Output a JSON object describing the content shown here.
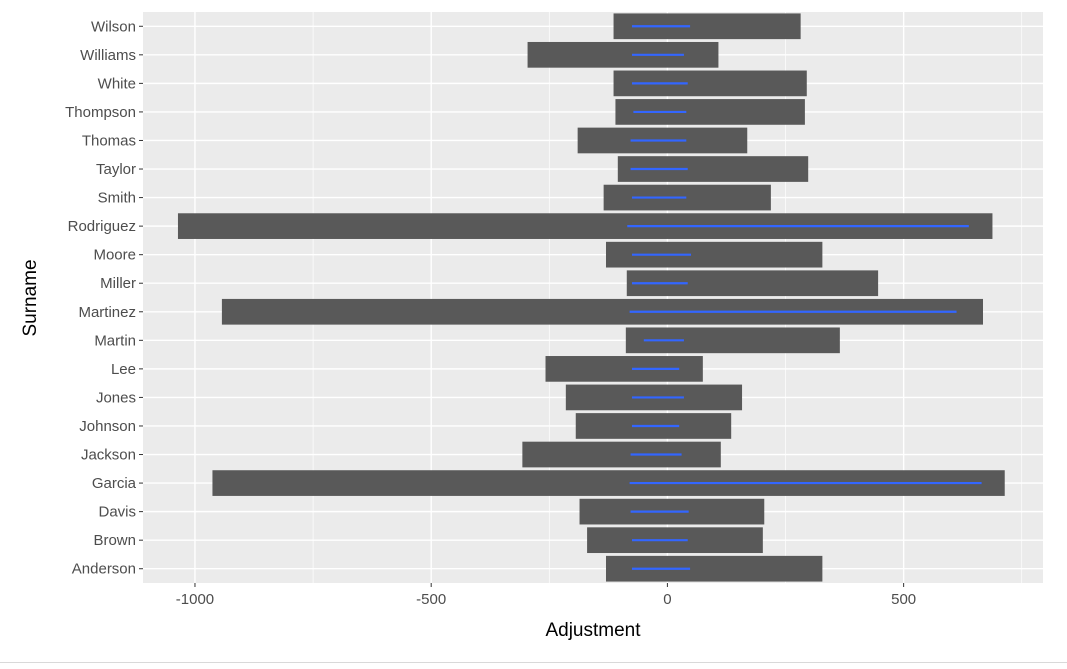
{
  "chart_data": {
    "type": "bar",
    "orientation": "horizontal",
    "xlabel": "Adjustment",
    "ylabel": "Surname",
    "xlim": [
      -1110,
      795
    ],
    "xticks": [
      -1000,
      -500,
      0,
      500
    ],
    "grid": true,
    "legend": "none",
    "colors": {
      "bar": "#595959",
      "segment": "#3366ff",
      "panel": "#ebebeb",
      "grid": "#ffffff"
    },
    "categories": [
      "Anderson",
      "Brown",
      "Davis",
      "Garcia",
      "Jackson",
      "Johnson",
      "Jones",
      "Lee",
      "Martin",
      "Martinez",
      "Miller",
      "Moore",
      "Rodriguez",
      "Smith",
      "Taylor",
      "Thomas",
      "Thompson",
      "White",
      "Williams",
      "Wilson"
    ],
    "series": [
      {
        "values": [
          [
            -130,
            328
          ],
          [
            -170,
            202
          ],
          [
            -186,
            205
          ],
          [
            -963,
            714
          ],
          [
            -307,
            113
          ],
          [
            -194,
            135
          ],
          [
            -215,
            158
          ],
          [
            -258,
            75
          ],
          [
            -88,
            365
          ],
          [
            -943,
            668
          ],
          [
            -86,
            446
          ],
          [
            -130,
            328
          ],
          [
            -1036,
            688
          ],
          [
            -135,
            219
          ],
          [
            -105,
            298
          ],
          [
            -190,
            169
          ],
          [
            -110,
            291
          ],
          [
            -114,
            295
          ],
          [
            -296,
            108
          ],
          [
            -114,
            282
          ]
        ]
      },
      {
        "values": [
          [
            -75,
            48
          ],
          [
            -75,
            43
          ],
          [
            -78,
            45
          ],
          [
            -80,
            665
          ],
          [
            -78,
            30
          ],
          [
            -75,
            25
          ],
          [
            -75,
            35
          ],
          [
            -75,
            25
          ],
          [
            -50,
            35
          ],
          [
            -80,
            612
          ],
          [
            -75,
            43
          ],
          [
            -75,
            50
          ],
          [
            -85,
            638
          ],
          [
            -75,
            40
          ],
          [
            -78,
            43
          ],
          [
            -78,
            40
          ],
          [
            -72,
            40
          ],
          [
            -75,
            43
          ],
          [
            -75,
            35
          ],
          [
            -75,
            48
          ]
        ]
      }
    ]
  }
}
